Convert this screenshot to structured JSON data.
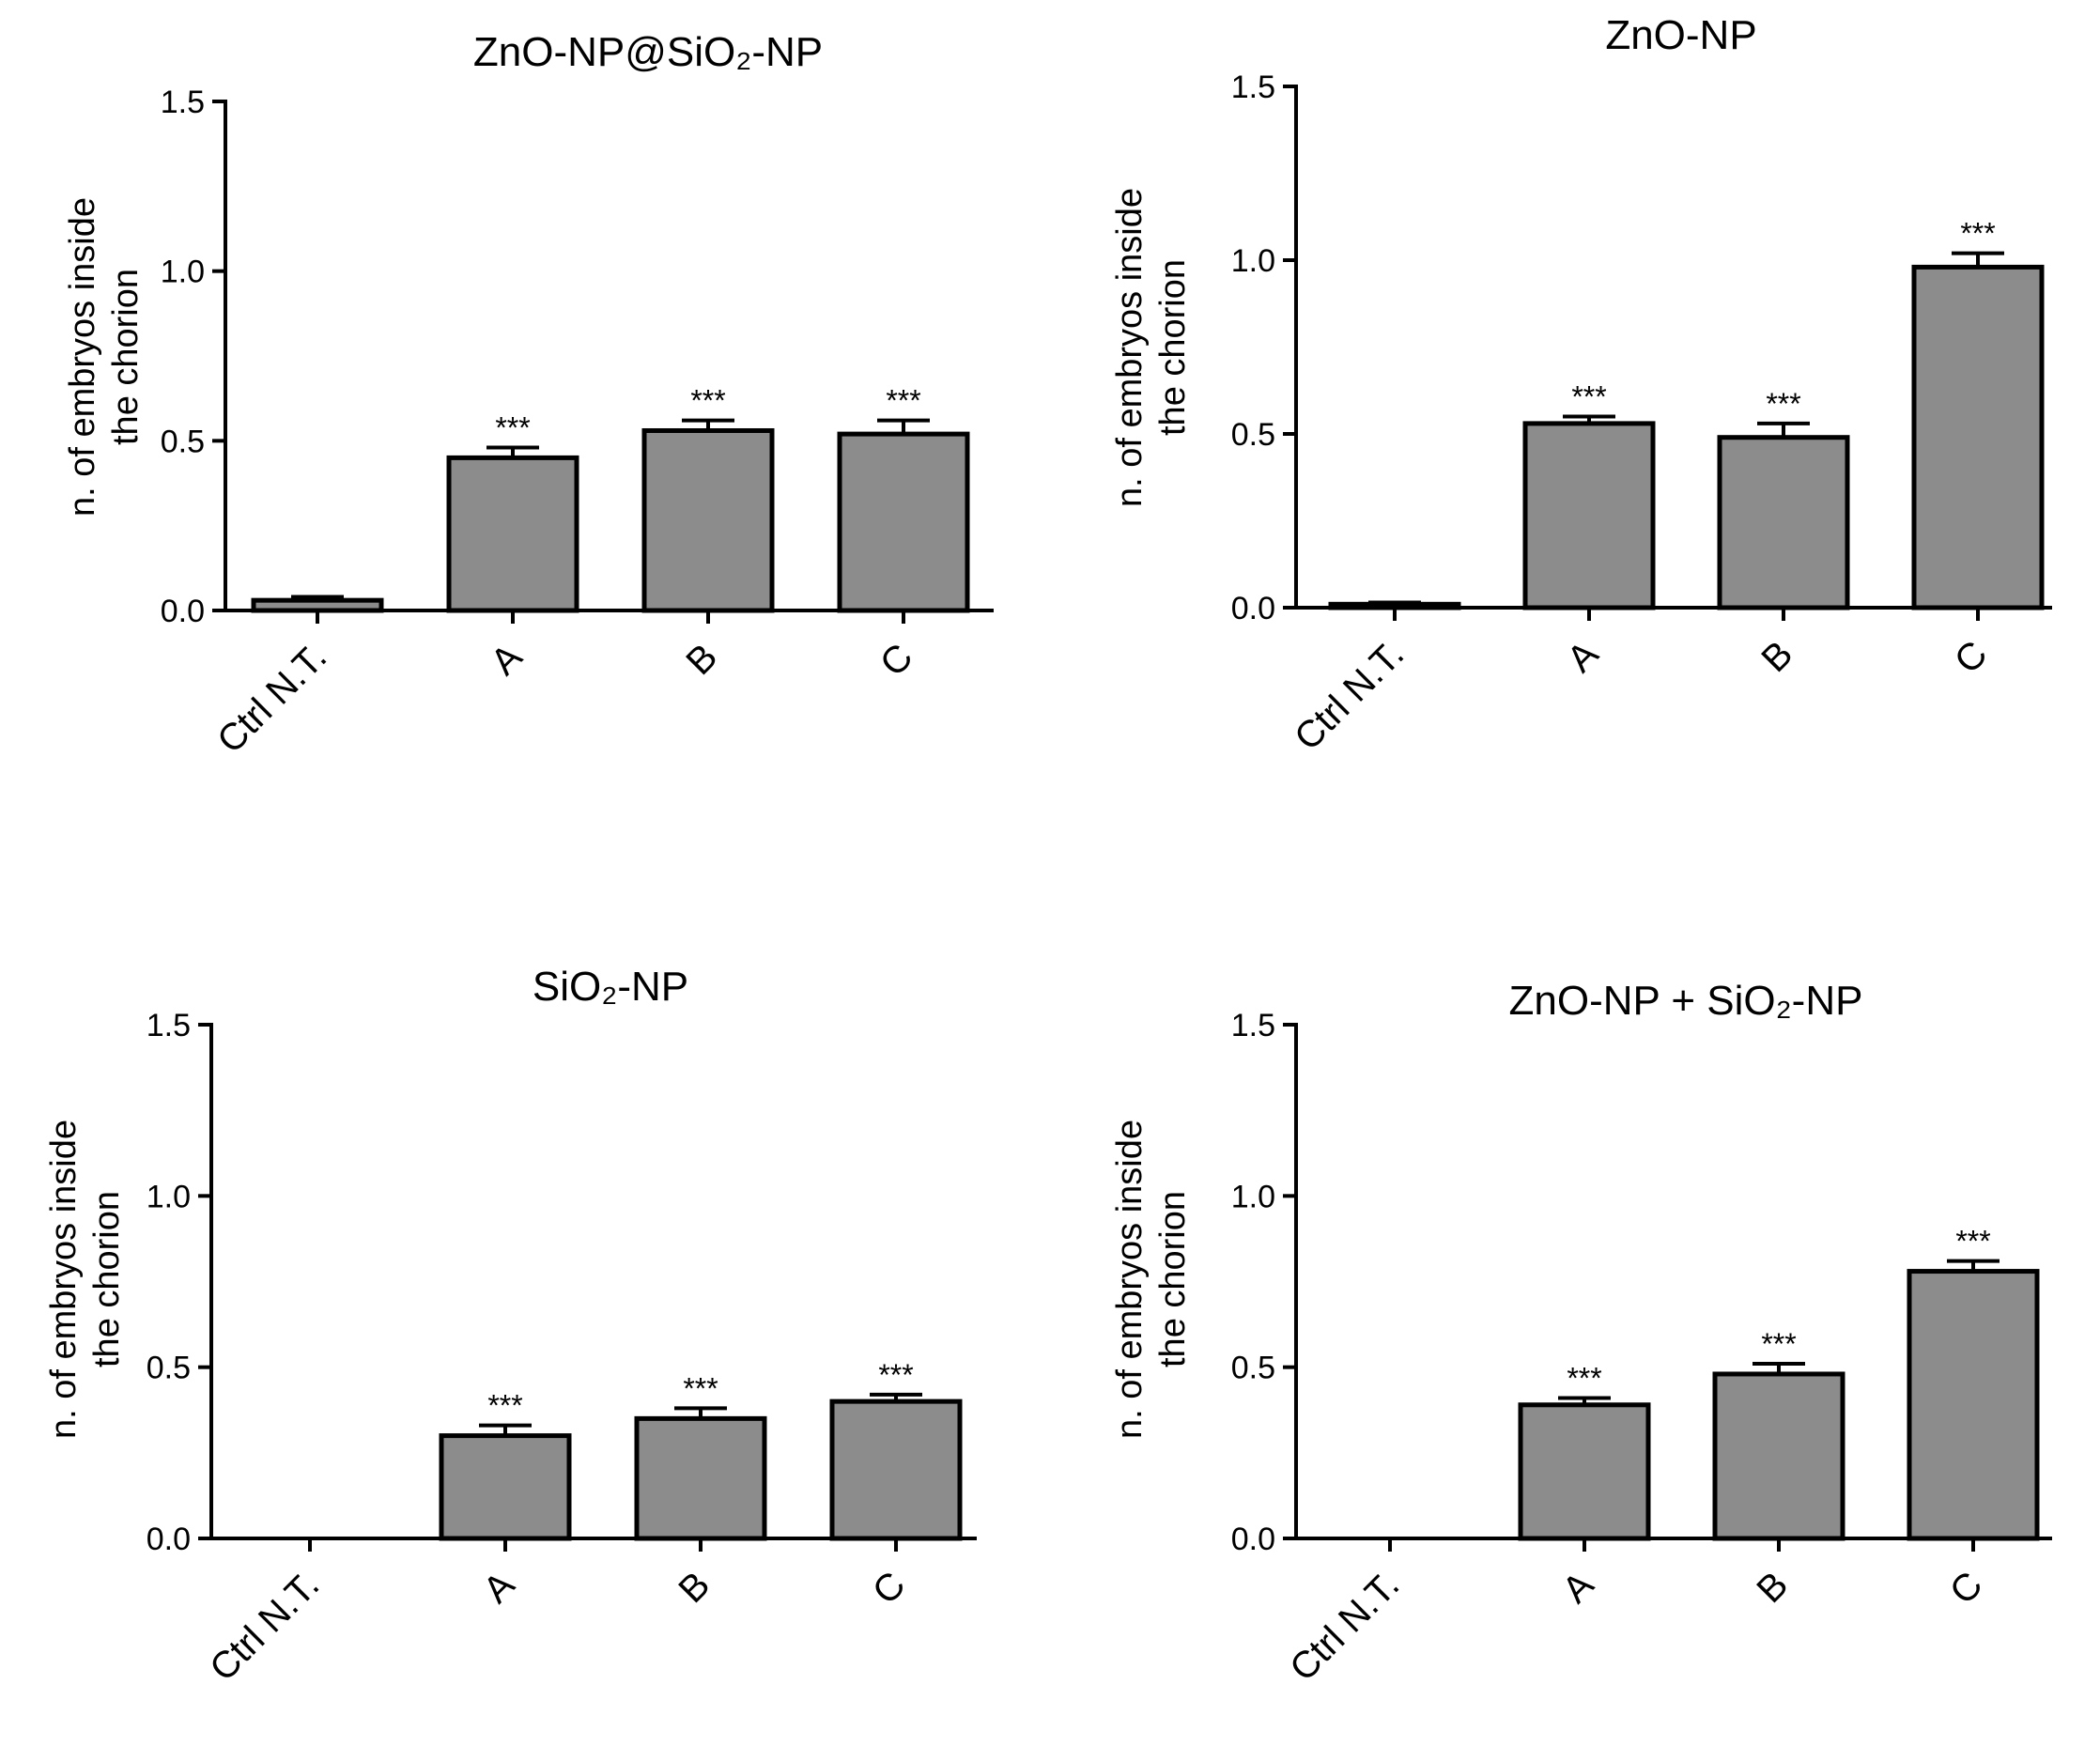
{
  "figure": {
    "bar_color": "#8c8c8c",
    "axis_color": "#000000"
  },
  "chart_data": [
    {
      "type": "bar",
      "title": "ZnO-NP@SiO₂-NP",
      "ylabel": [
        "n. of embryos inside",
        "the chorion"
      ],
      "xlabel": "",
      "categories": [
        "Ctrl N.T.",
        "A",
        "B",
        "C"
      ],
      "values": [
        0.03,
        0.45,
        0.53,
        0.52
      ],
      "errors": [
        0.01,
        0.03,
        0.03,
        0.04
      ],
      "significance": [
        "",
        "***",
        "***",
        "***"
      ],
      "ylim": [
        0,
        1.5
      ],
      "yticks": [
        "0.0",
        "0.5",
        "1.0",
        "1.5"
      ]
    },
    {
      "type": "bar",
      "title": "ZnO-NP",
      "ylabel": [
        "n. of embryos inside",
        "the chorion"
      ],
      "xlabel": "",
      "categories": [
        "Ctrl N.T.",
        "A",
        "B",
        "C"
      ],
      "values": [
        0.01,
        0.53,
        0.49,
        0.98
      ],
      "errors": [
        0.005,
        0.02,
        0.04,
        0.04
      ],
      "significance": [
        "",
        "***",
        "***",
        "***"
      ],
      "ylim": [
        0,
        1.5
      ],
      "yticks": [
        "0.0",
        "0.5",
        "1.0",
        "1.5"
      ]
    },
    {
      "type": "bar",
      "title": "SiO₂-NP",
      "ylabel": [
        "n. of embryos inside",
        "the chorion"
      ],
      "xlabel": "",
      "categories": [
        "Ctrl N.T.",
        "A",
        "B",
        "C"
      ],
      "values": [
        0.0,
        0.3,
        0.35,
        0.4
      ],
      "errors": [
        0.0,
        0.03,
        0.03,
        0.02
      ],
      "significance": [
        "",
        "***",
        "***",
        "***"
      ],
      "ylim": [
        0,
        1.5
      ],
      "yticks": [
        "0.0",
        "0.5",
        "1.0",
        "1.5"
      ]
    },
    {
      "type": "bar",
      "title": "ZnO-NP + SiO₂-NP",
      "ylabel": [
        "n. of embryos inside",
        "the chorion"
      ],
      "xlabel": "",
      "categories": [
        "Ctrl N.T.",
        "A",
        "B",
        "C"
      ],
      "values": [
        0.0,
        0.39,
        0.48,
        0.78
      ],
      "errors": [
        0.0,
        0.02,
        0.03,
        0.03
      ],
      "significance": [
        "",
        "***",
        "***",
        "***"
      ],
      "ylim": [
        0,
        1.5
      ],
      "yticks": [
        "0.0",
        "0.5",
        "1.0",
        "1.5"
      ]
    }
  ]
}
